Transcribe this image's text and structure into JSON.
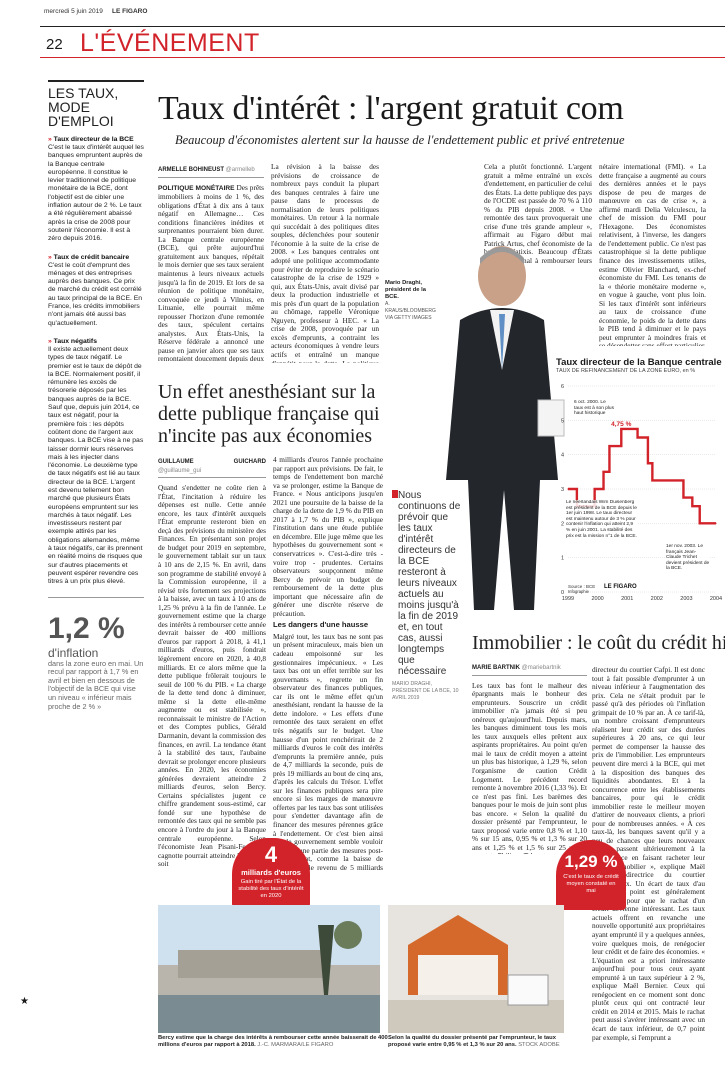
{
  "header": {
    "date": "mercredi 5 juin 2019",
    "paper": "LE FIGARO",
    "page_number": "22",
    "section": "L'ÉVÉNEMENT"
  },
  "sidebar": {
    "title": "LES TAUX, MODE D'EMPLOI",
    "sections": [
      {
        "head": "Taux directeur de la BCE",
        "body": "C'est le taux d'intérêt auquel les banques empruntent auprès de la Banque centrale européenne. Il constitue le levier traditionnel de politique monétaire de la BCE, dont l'objectif est de cibler une inflation autour de 2 %. Le taux a été régulièrement abaissé après la crise de 2008 pour soutenir l'économie. Il est à zéro depuis 2016."
      },
      {
        "head": "Taux de crédit bancaire",
        "body": "C'est le coût d'emprunt des ménages et des entreprises auprès des banques. Ce prix de marché du crédit est corrélé au taux principal de la BCE. En France, les crédits immobiliers n'ont jamais été aussi bas qu'actuellement."
      },
      {
        "head": "Taux négatifs",
        "body": "Il existe actuellement deux types de taux négatif. Le premier est le taux de dépôt de la BCE. Normalement positif, il rémunère les excès de trésorerie déposés par les banques auprès de la BCE. Sauf que, depuis juin 2014, ce taux est négatif, pour la première fois : les dépôts coûtent donc de l'argent aux banques. La BCE vise à ne pas laisser dormir leurs réserves mais à les injecter dans l'économie. Le deuxième type de taux négatifs est lié au taux directeur de la BCE. L'argent est devenu tellement bon marché que plusieurs États européens empruntent sur les marchés à taux négatif. Les investisseurs restent par exemple attirés par les obligations allemandes, même à taux négatifs, car ils prennent en réalité moins de risques que sur d'autres placements et peuvent espérer revendre ces titres à un prix plus élevé."
      }
    ],
    "stat_value": "1,2 %",
    "stat_label": "d'inflation",
    "stat_body": "dans la zone euro en mai. Un recul par rapport à 1,7 % en avril et bien en dessous de l'objectif de la BCE qui vise un niveau « inférieur mais proche de 2 % »"
  },
  "article1": {
    "headline": "Taux d'intérêt : l'argent gratuit com",
    "deck": "Beaucoup d'économistes alertent sur la hausse de l'endettement public et privé entretenue",
    "author": "ARMELLE BOHINEUST",
    "handle": "@armelleb",
    "lead": "POLITIQUE MONÉTAIRE",
    "col1": "Des prêts immobiliers à moins de 1 %, des obligations d'État à dix ans à taux négatif en Allemagne… Ces conditions financières inédites et surprenantes pourraient bien durer. La Banque centrale européenne (BCE), qui prête aujourd'hui gratuitement aux banques, répétait le mois dernier que ses taux seraient maintenus à leurs niveaux actuels jusqu'à la fin de 2019. Et lors de sa réunion de politique monétaire, convoquée ce jeudi à Vilnius, en Lituanie, elle pourrait même repousser l'horizon d'une remontée des taux, spéculent certains analystes. Aux États-Unis, la Réserve fédérale a annoncé une pause en janvier alors que ses taux remontaient doucement depuis deux ans et avaient atteint 2,5 % fin 2018.",
    "col2": "La révision à la baisse des prévisions de croissance de nombreux pays conduit la plupart des banques centrales à faire une pause dans le processus de normalisation de leurs politiques monétaires. Un retour à la normale qui succédait à des politiques dites souples, déclenchées pour soutenir l'économie à la suite de la crise de 2008. « Les banques centrales ont adopté une politique accommodante pour éviter de reproduire le scénario catastrophe de la crise de 1929 » qui, aux États-Unis, avait divisé par deux la production industrielle et mis près d'un quart de la population au chômage, rappelle Véronique Nguyen, professeur à HEC. « La crise de 2008, provoquée par un excès d'emprunts, a contraint les acteurs économiques à vendre leurs actifs et entraîné un manque d'appétit pour la dette. La politique de taux proches de zéro était censée relancer cet appétit. »",
    "col3": "Cela a plutôt fonctionné. L'argent gratuit a même entraîné un excès d'endettement, en particulier de celui des États. La dette publique des pays de l'OCDE est passée de 70 % à 110 % du PIB depuis 2008. « Une remontée des taux provoquerait une crise d'une très grande ampleur », affirmait au Figaro début mai Patrick Artus, chef économiste de la banque Natixis. Beaucoup d'États auraient du mal à rembourser leurs intérêts. Dont, la France, selon le Fonds mo-",
    "col4": "nétaire international (FMI). « La dette française a augmenté au cours des dernières années et le pays dispose de peu de marges de manœuvre en cas de crise », a affirmé mardi Delia Velculescu, la chef de mission du FMI pour l'Hexagone. Des économistes relativisent, à l'inverse, les dangers de l'endettement public. Ce n'est pas catastrophique si la dette publique finance des investissements utiles, estime Olivier Blanchard, ex-chef économiste du FMI. Les tenants de la « théorie monétaire moderne », en vogue à gauche, vont plus loin. Si les taux d'intérêt sont inférieurs au taux de croissance d'une économie, le poids de la dette dans le PIB tend à diminuer et le pays peut emprunter à moindres frais et se désendetter sans effort particulier, assurent-ils."
  },
  "photo1": {
    "caption_name": "Mario Draghi, président de la BCE.",
    "credit": "A. KRAUS/BLOOMBERG VIA GETTY IMAGES"
  },
  "quote1": {
    "text": "Nous continuons de prévoir que les taux d'intérêt directeurs de la BCE resteront à leurs niveaux actuels au moins jusqu'à la fin de 2019 et, en tout cas, aussi longtemps que nécessaire",
    "source": "MARIO DRAGHI, PRÉSIDENT DE LA BCE, 10 AVRIL 2019"
  },
  "article2": {
    "headline": "Un effet anesthésiant sur la dette publique française qui n'incite pas aux économies",
    "author": "GUILLAUME GUICHARD",
    "handle": "@guillaume_gui",
    "col1": "Quand s'endetter ne coûte rien à l'État, l'incitation à réduire les dépenses est nulle. Cette année encore, les taux d'intérêt auxquels l'État emprunte resteront bien en deçà des prévisions du ministère des Finances. En présentant son projet de budget pour 2019 en septembre, le gouvernement tablait sur un taux à 10 ans de 2,15 %. En avril, dans son programme de stabilité envoyé à la Commission européenne, il a révisé très fortement ses projections à la baisse, avec un taux à 10 ans de 1,25 % prévu à la fin de l'année. Le gouvernement estime que la charge des intérêts à rembourser cette année devrait baisser de 400 millions d'euros par rapport à 2018, à 41,1 milliards d'euros, puis fondrait légèrement encore en 2020, à 40,8 milliards. Et ce alors même que la dette publique frôlerait toujours le seuil de 100 % du PIB. « La charge de la dette tend donc à diminuer, même si la dette elle-même augmente ou est stabilisée », reconnaissait le ministre de l'Action et des Comptes publics, Gérald Darmanin, devant la commission des finances, en avril. La tendance étant à la stabilité des taux, l'aubaine devrait se prolonger encore plusieurs années. En 2020, les économies générées devraient atteindre 2 milliards d'euros, selon Bercy. Certains spécialistes jugent ce chiffre grandement sous-estimé, car fondé sur une hypothèse de remontée des taux qui ne semble pas encore à l'ordre du jour à la Banque centrale européenne. Selon l'économiste Jean Pisani-Ferry, la cagnotte pourrait atteindre le double, soit",
    "col2": "4 milliards d'euros l'année prochaine par rapport aux prévisions. De fait, le temps de l'endettement bon marché va se prolonger, estime la Banque de France. « Nous anticipons jusqu'en 2021 une poursuite de la baisse de la charge de la dette de 1,9 % du PIB en 2017 à 1,7 % du PIB », explique l'institution dans une étude publiée en décembre. Elle juge même que les hypothèses du gouvernement sont « conservatrices ». C'est-à-dire très - voire trop - prudentes. Certains observateurs soupçonnent même Bercy de prévoir un budget de remboursement de la dette plus important que nécessaire afin de générer une discrète réserve de précaution.",
    "subhead": "Les dangers d'une hausse",
    "col2b": "Malgré tout, les taux bas ne sont pas un présent miraculeux, mais bien un cadeau empoisonné sur les gestionnaires impécunieux. « Les taux bas ont un effet terrible sur les gouvernants », regrette un fin observateur des finances publiques, car ils ont le même effet qu'un anesthésiant, rendant la hausse de la dette indolore. « Les effets d'une remontée des taux seraient en effet très négatifs sur le budget. Une hausse d'un point renchérirait de 2 milliards d'euros le coût des intérêts d'emprunts la première année, puis de 4,7 milliards la seconde, puis de près 19 milliards au bout de cinq ans, d'après les calculs du Trésor. L'effet sur les finances publiques sera pire encore si les marges de manœuvre offertes par les taux bas sont utilisées pour s'endetter davantage afin de financer des mesures pérennes grâce à l'endettement. Or c'est bien ainsi que le gouvernement semble vouloir financer une partie des mesures post-grand débat, comme la baisse de l'impôt sur le revenu de 5 milliards d'euros."
  },
  "callout1": {
    "value": "4",
    "unit": "milliards d'euros",
    "text": "Gain tiré par l'État de la stabilité des taux d'intérêt en 2020"
  },
  "chart_data": {
    "type": "line",
    "title": "Taux directeur de la Banque centrale",
    "subtitle": "TAUX DE REFINANCEMENT DE LA ZONE EURO, en %",
    "x": [
      1999,
      1999.3,
      1999.9,
      2000.2,
      2000.4,
      2000.8,
      2001.35,
      2001.7,
      2001.85,
      2002.9,
      2003.2,
      2003.45,
      2004
    ],
    "values": [
      3.0,
      2.5,
      3.0,
      3.5,
      4.25,
      4.75,
      4.5,
      3.75,
      3.25,
      2.75,
      2.5,
      2.0,
      2.0
    ],
    "ylim": [
      0,
      6
    ],
    "xlim": [
      1999,
      2004
    ],
    "yticks": [
      "0",
      "1",
      "2",
      "3",
      "4",
      "5",
      "6"
    ],
    "xticks": [
      "1999",
      "2000",
      "2001",
      "2002",
      "2003",
      "2004"
    ],
    "peak_label": "4,75 %",
    "ann1": "6 oct. 2000. Le taux est à son plus haut historique",
    "ann2": "Le néerlandais Wim Duisenberg est président de la BCE depuis le 1er juin 1998. Le taux directeur est maintenu autour de 3 % pour contenir l'inflation qui atteint 2,9 % en juin 2001. La stabilité des prix est la mission n°1 de la BCE.",
    "ann3": "1er nov. 2003. Le français Jean-Claude Trichet devient président de la BCE.",
    "source": "Source : BCE",
    "infographie": "Infographie",
    "brand": "LE FIGARO",
    "line_color": "#d2232a"
  },
  "article3": {
    "headline": "Immobilier : le coût du crédit his",
    "author": "MARIE BARTNIK",
    "handle": "@mariebartnik",
    "col1": "Les taux bas font le malheur des épargnants mais le bonheur des emprunteurs. Souscrire un crédit immobilier n'a jamais été si peu onéreux qu'aujourd'hui. Depuis mars, les banques diminuent tous les mois les taux auxquels elles prêtent aux aspirants propriétaires. Au point qu'en mai le taux de crédit moyen a atteint un plus bas historique, à 1,29 %, selon l'organisme de caution Crédit Logement. Le précédent record remonte à novembre 2016 (1,33 %). Et ce n'est pas fini. Les barèmes des banques pour le mois de juin sont plus bas encore. « Selon la qualité du dossier présenté par l'emprunteur, le taux proposé varie entre 0,8 % et 1,10 % sur 15 ans, 0,95 % et 1,3 % sur 20 ans et 1,25 % et 1,5 % sur 25 ans », constate Philippe Taboret,",
    "col2": "directeur du courtier Cafpi. Il est donc tout à fait possible d'emprunter à un niveau inférieur à l'augmentation des prix. Cela ne s'était produit par le passé qu'à des périodes où l'inflation grimpait de 10 % par an. À ce tarif-là, un nombre croissant d'emprunteurs réalisent leur crédit sur des durées supérieures à 20 ans, ce qui leur permet de compenser la hausse des prix de l'immobilier. Les emprunteurs peuvent dire merci à la BCE, qui met à la disposition des banques des liquidités abondantes. Et à la concurrence entre les établissements bancaires, pour qui le crédit immobilier reste le meilleur moyen d'attirer de nouveaux clients, a priori pour de nombreuses années. « À ces taux-là, les banques savent qu'il y a peu de chances que leurs nouveaux clients passent ultérieurement à la concurrence en faisant racheter leur crédit immobilier », explique Maël Bernier, directrice du courtier Meilleurtaux. Un écart de taux d'au moins un point est généralement nécessaire pour que le rachat d'un crédit devienne intéressant. Les taux actuels offrent en revanche une nouvelle opportunité aux propriétaires ayant emprunté il y a quelques années, voire quelques mois, de renégocier leur crédit et de faire des économies. « L'équation est a priori intéressante aujourd'hui pour tous ceux ayant emprunté à un taux supérieur à 2 %, explique Maël Bernier. Ceux qui renégocient en ce moment sont donc plutôt ceux qui ont contracté leur crédit en 2014 et 2015. Mais le rachat peut aussi s'avérer intéressant avec un écart de taux inférieur, de 0,7 point par exemple, si l'emprunt a"
  },
  "callout2": {
    "value": "1,29 %",
    "text": "C'est le taux de crédit moyen constaté en mai"
  },
  "photo2": {
    "caption": "Bercy estime que la charge des intérêts à rembourser cette année baisserait de 400 millions d'euros par rapport à 2018.",
    "credit": "J.-C. MARMARA/LE FIGARO"
  },
  "photo3": {
    "caption": "Selon la qualité du dossier présenté par l'emprunteur, le taux proposé varie entre 0,95 % et 1,3 % sur 20 ans.",
    "credit": "STOCK ADOBE"
  }
}
